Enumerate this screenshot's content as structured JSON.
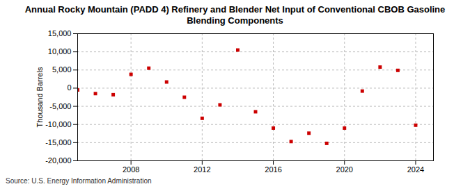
{
  "chart_data": {
    "type": "scatter",
    "title": "Annual Rocky Mountain (PADD 4) Refinery and Blender Net Input of Conventional CBOB Gasoline Blending Components",
    "y_label": "Thousand Barrels",
    "caption": "Source: U.S. Energy Information Administration",
    "x": [
      2005,
      2006,
      2007,
      2008,
      2009,
      2010,
      2011,
      2012,
      2013,
      2014,
      2015,
      2016,
      2017,
      2018,
      2019,
      2020,
      2021,
      2022,
      2023,
      2024
    ],
    "values": [
      -500,
      -1500,
      -1800,
      3800,
      5500,
      1700,
      -2500,
      -8300,
      -4600,
      10500,
      -6500,
      -11000,
      -14700,
      -12400,
      -15200,
      -11000,
      -800,
      5800,
      4900,
      -10200
    ],
    "color": "#cc0000",
    "marker": "square",
    "xlim": [
      2005,
      2025
    ],
    "xticks": [
      2008,
      2012,
      2016,
      2020,
      2024
    ],
    "ylim": [
      -20000,
      15000
    ],
    "yticks": [
      {
        "value": -20000,
        "label": "-20,000"
      },
      {
        "value": -15000,
        "label": "-15,000"
      },
      {
        "value": -10000,
        "label": "-10,000"
      },
      {
        "value": -5000,
        "label": "-5,000"
      },
      0,
      {
        "value": 5000,
        "label": "5,000"
      },
      {
        "value": 10000,
        "label": "10,000"
      },
      {
        "value": 15000,
        "label": "15,000"
      }
    ],
    "grid": true
  }
}
